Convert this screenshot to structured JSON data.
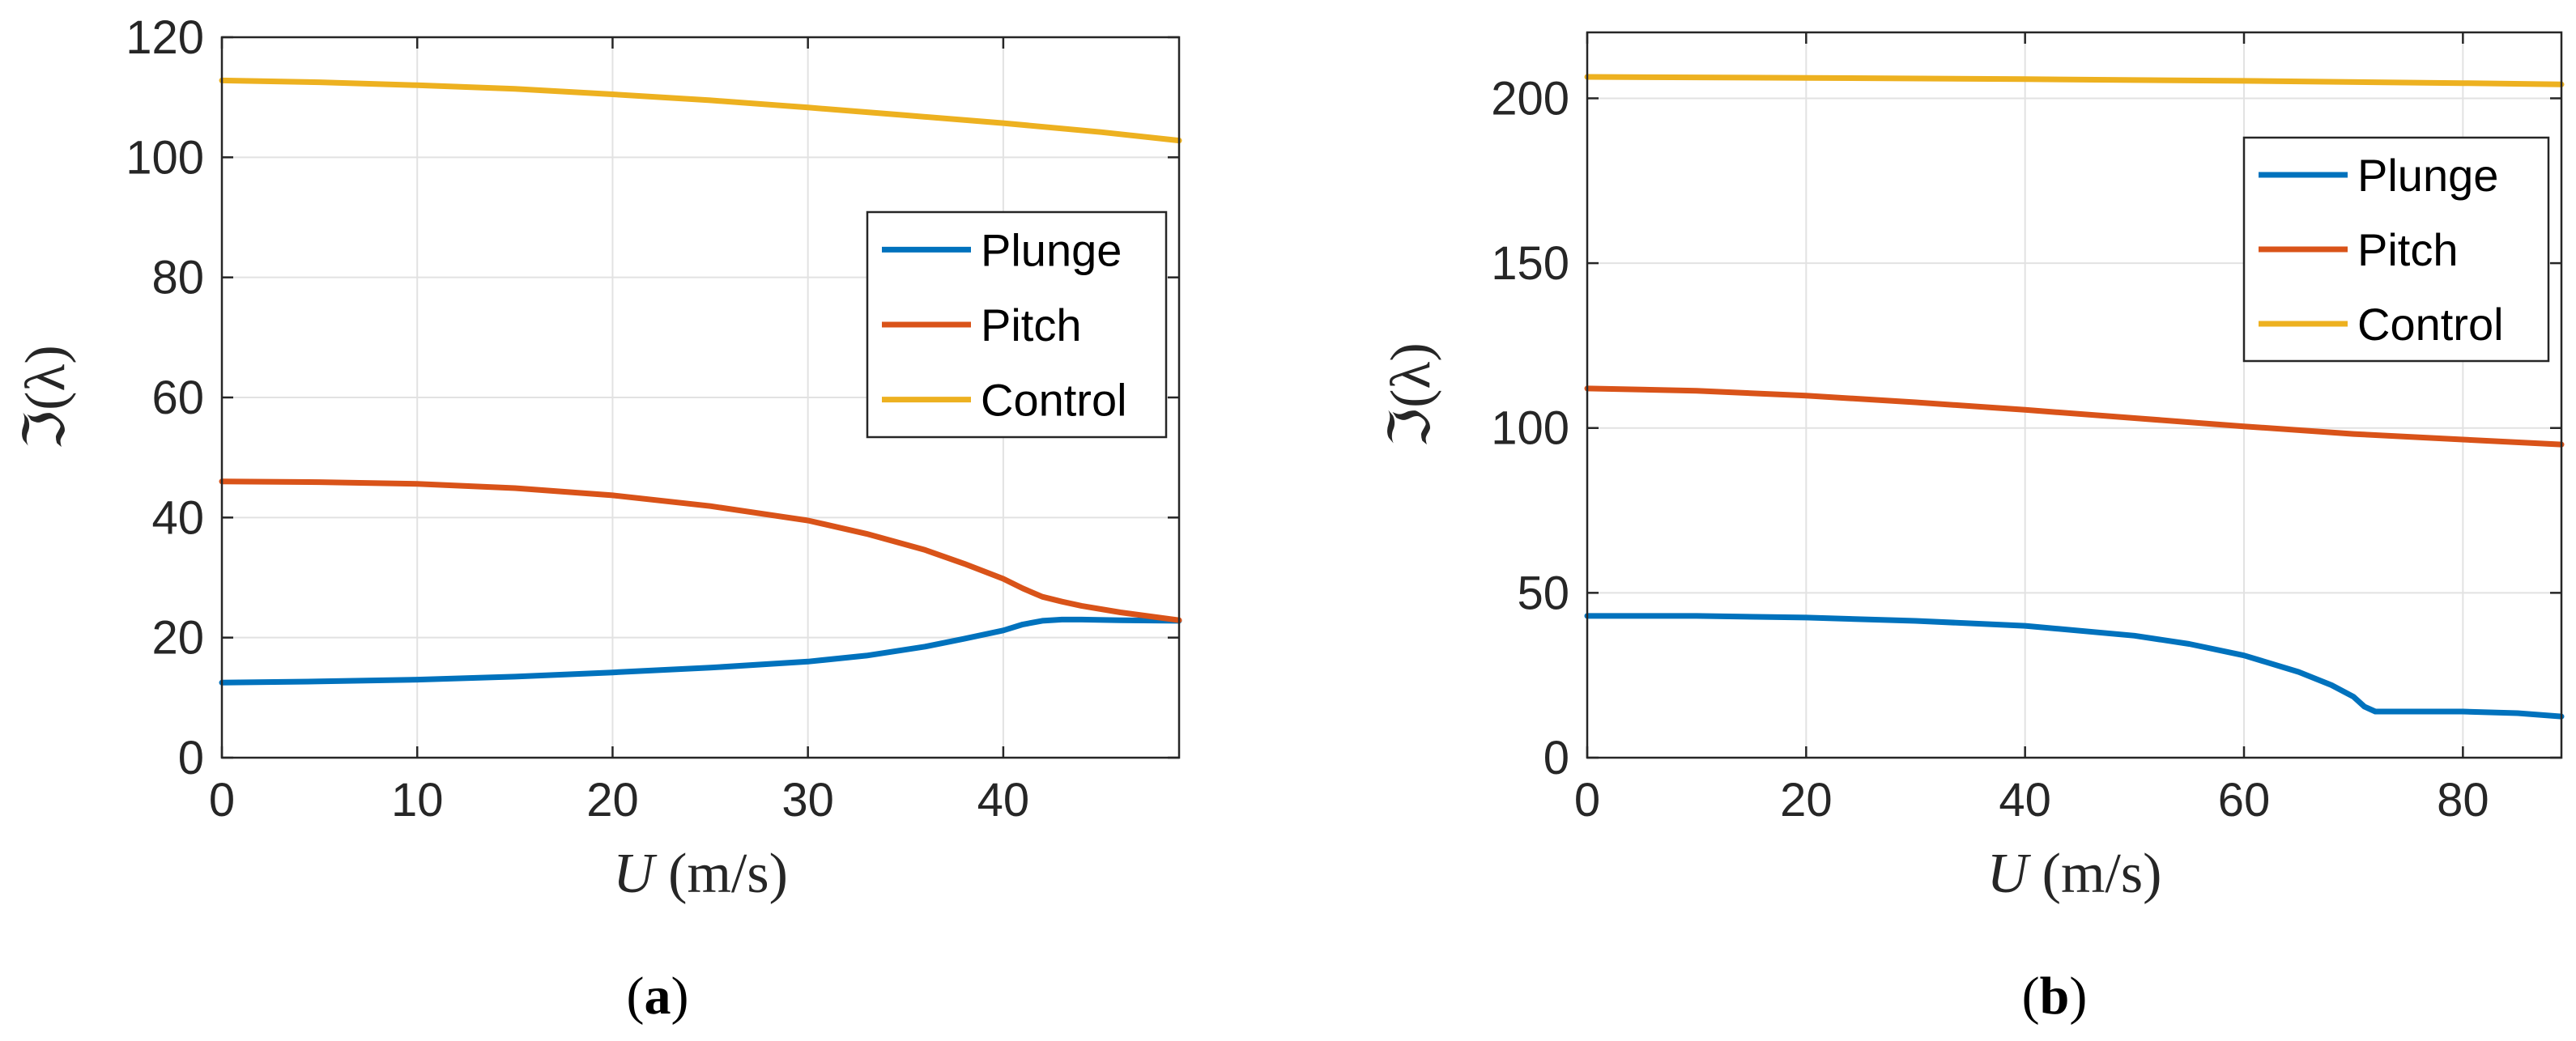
{
  "chart_data": [
    {
      "type": "line",
      "panel_label": "(a)",
      "xlabel": "U (m/s)",
      "xlabel_var": "U",
      "xlabel_unit": "(m/s)",
      "ylabel": "ℑ(λ)",
      "xlim": [
        0,
        49
      ],
      "ylim": [
        0,
        120
      ],
      "xticks": [
        0,
        10,
        20,
        30,
        40
      ],
      "yticks": [
        0,
        20,
        40,
        60,
        80,
        100,
        120
      ],
      "grid": true,
      "legend_position": "right-center",
      "series": [
        {
          "name": "Plunge",
          "color": "#0072BD",
          "x": [
            0,
            5,
            10,
            15,
            20,
            25,
            30,
            33,
            36,
            38,
            40,
            41,
            42,
            43,
            44,
            46,
            49
          ],
          "y": [
            12.5,
            12.7,
            13,
            13.5,
            14.2,
            15,
            16,
            17,
            18.5,
            19.8,
            21.2,
            22.2,
            22.8,
            23.0,
            23.0,
            22.9,
            22.8
          ]
        },
        {
          "name": "Pitch",
          "color": "#D95319",
          "x": [
            0,
            5,
            10,
            15,
            20,
            25,
            30,
            33,
            36,
            38,
            40,
            41,
            42,
            43,
            44,
            46,
            49
          ],
          "y": [
            46,
            45.9,
            45.6,
            44.9,
            43.7,
            41.9,
            39.5,
            37.3,
            34.6,
            32.3,
            29.8,
            28.2,
            26.8,
            26.0,
            25.3,
            24.2,
            22.9
          ]
        },
        {
          "name": "Control",
          "color": "#EDB120",
          "x": [
            0,
            5,
            10,
            15,
            20,
            25,
            30,
            35,
            40,
            45,
            49
          ],
          "y": [
            112.8,
            112.5,
            112.0,
            111.4,
            110.5,
            109.5,
            108.3,
            107.0,
            105.7,
            104.2,
            102.8
          ]
        }
      ]
    },
    {
      "type": "line",
      "panel_label": "(b)",
      "xlabel": "U (m/s)",
      "xlabel_var": "U",
      "xlabel_unit": "(m/s)",
      "ylabel": "ℑ(λ)",
      "xlim": [
        0,
        89
      ],
      "ylim": [
        0,
        220
      ],
      "xticks": [
        0,
        20,
        40,
        60,
        80
      ],
      "yticks": [
        0,
        50,
        100,
        150,
        200
      ],
      "grid": true,
      "legend_position": "top-right",
      "series": [
        {
          "name": "Plunge",
          "color": "#0072BD",
          "x": [
            0,
            10,
            20,
            30,
            40,
            50,
            55,
            60,
            65,
            68,
            70,
            71,
            72,
            74,
            80,
            85,
            89
          ],
          "y": [
            43,
            43,
            42.5,
            41.5,
            40,
            37,
            34.5,
            31,
            26,
            22,
            18.5,
            15.5,
            14,
            14,
            14,
            13.5,
            12.5
          ]
        },
        {
          "name": "Pitch",
          "color": "#D95319",
          "x": [
            0,
            10,
            20,
            30,
            40,
            50,
            60,
            70,
            80,
            89
          ],
          "y": [
            112,
            111.3,
            109.8,
            107.8,
            105.5,
            103,
            100.5,
            98.2,
            96.5,
            95
          ]
        },
        {
          "name": "Control",
          "color": "#EDB120",
          "x": [
            0,
            20,
            40,
            60,
            80,
            89
          ],
          "y": [
            206.5,
            206.2,
            205.8,
            205.3,
            204.6,
            204.2
          ]
        }
      ]
    }
  ]
}
